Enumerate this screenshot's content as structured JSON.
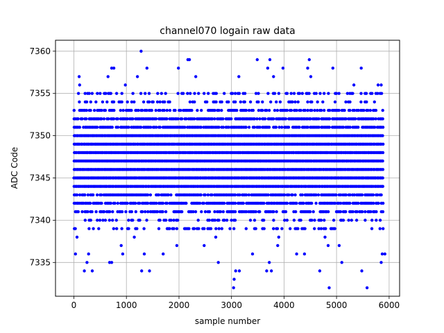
{
  "chart_data": {
    "type": "scatter",
    "title": "channel070 logain raw data",
    "xlabel": "sample number",
    "ylabel": "ADC Code",
    "xlim": [
      -350,
      6200
    ],
    "ylim": [
      7331,
      7361.3
    ],
    "xticks": [
      0,
      1000,
      2000,
      3000,
      4000,
      5000,
      6000
    ],
    "yticks": [
      7335,
      7340,
      7345,
      7350,
      7355,
      7360
    ],
    "grid": true,
    "marker": "dot",
    "series": [
      {
        "color": "#0000ff",
        "x_range": [
          0,
          5900
        ],
        "bulk_levels": [
          7339,
          7340,
          7341,
          7342,
          7343,
          7344,
          7345,
          7346,
          7347,
          7348,
          7349,
          7350,
          7351,
          7352,
          7353,
          7354,
          7355
        ],
        "outliers": [
          {
            "x": 1280,
            "y": 7360
          },
          {
            "x": 2170,
            "y": 7359
          },
          {
            "x": 2200,
            "y": 7359
          },
          {
            "x": 3490,
            "y": 7359
          },
          {
            "x": 3730,
            "y": 7359
          },
          {
            "x": 4480,
            "y": 7359
          },
          {
            "x": 100,
            "y": 7357
          },
          {
            "x": 650,
            "y": 7357
          },
          {
            "x": 1210,
            "y": 7357
          },
          {
            "x": 2320,
            "y": 7357
          },
          {
            "x": 3140,
            "y": 7357
          },
          {
            "x": 3800,
            "y": 7357
          },
          {
            "x": 4510,
            "y": 7357
          },
          {
            "x": 720,
            "y": 7358
          },
          {
            "x": 760,
            "y": 7358
          },
          {
            "x": 1390,
            "y": 7358
          },
          {
            "x": 1990,
            "y": 7358
          },
          {
            "x": 3690,
            "y": 7358
          },
          {
            "x": 3980,
            "y": 7358
          },
          {
            "x": 4450,
            "y": 7358
          },
          {
            "x": 4930,
            "y": 7358
          },
          {
            "x": 5470,
            "y": 7358
          },
          {
            "x": 110,
            "y": 7356
          },
          {
            "x": 980,
            "y": 7356
          },
          {
            "x": 5330,
            "y": 7356
          },
          {
            "x": 5790,
            "y": 7356
          },
          {
            "x": 5850,
            "y": 7356
          },
          {
            "x": 30,
            "y": 7336
          },
          {
            "x": 280,
            "y": 7336
          },
          {
            "x": 1340,
            "y": 7336
          },
          {
            "x": 1700,
            "y": 7336
          },
          {
            "x": 3400,
            "y": 7336
          },
          {
            "x": 4240,
            "y": 7336
          },
          {
            "x": 4390,
            "y": 7336
          },
          {
            "x": 5870,
            "y": 7336
          },
          {
            "x": 5920,
            "y": 7336
          },
          {
            "x": 250,
            "y": 7335
          },
          {
            "x": 680,
            "y": 7335
          },
          {
            "x": 720,
            "y": 7335
          },
          {
            "x": 2750,
            "y": 7335
          },
          {
            "x": 3720,
            "y": 7335
          },
          {
            "x": 5100,
            "y": 7335
          },
          {
            "x": 5850,
            "y": 7335
          },
          {
            "x": 200,
            "y": 7334
          },
          {
            "x": 350,
            "y": 7334
          },
          {
            "x": 1290,
            "y": 7334
          },
          {
            "x": 1440,
            "y": 7334
          },
          {
            "x": 3080,
            "y": 7334
          },
          {
            "x": 3150,
            "y": 7334
          },
          {
            "x": 3670,
            "y": 7334
          },
          {
            "x": 3760,
            "y": 7334
          },
          {
            "x": 4680,
            "y": 7334
          },
          {
            "x": 5480,
            "y": 7334
          },
          {
            "x": 3050,
            "y": 7333
          },
          {
            "x": 3040,
            "y": 7332
          },
          {
            "x": 4860,
            "y": 7332
          },
          {
            "x": 5580,
            "y": 7332
          },
          {
            "x": 900,
            "y": 7337
          },
          {
            "x": 1960,
            "y": 7337
          },
          {
            "x": 2480,
            "y": 7337
          },
          {
            "x": 3880,
            "y": 7337
          },
          {
            "x": 4840,
            "y": 7337
          },
          {
            "x": 5050,
            "y": 7337
          },
          {
            "x": 930,
            "y": 7336
          },
          {
            "x": 3900,
            "y": 7338
          },
          {
            "x": 60,
            "y": 7338
          },
          {
            "x": 1150,
            "y": 7338
          },
          {
            "x": 2700,
            "y": 7338
          },
          {
            "x": 4780,
            "y": 7338
          }
        ]
      }
    ]
  }
}
